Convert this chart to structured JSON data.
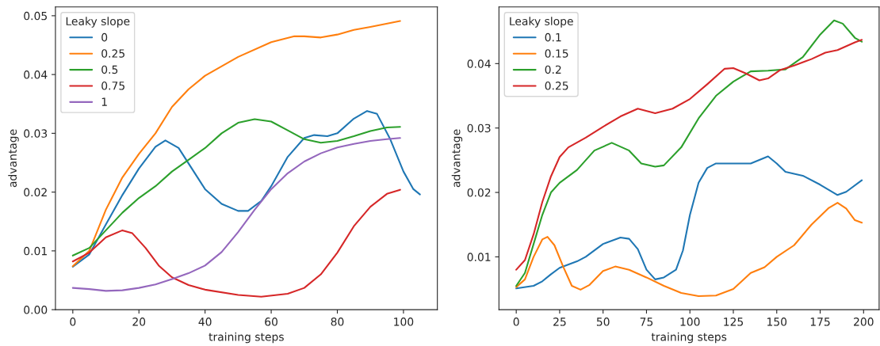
{
  "chart_data": [
    {
      "type": "line",
      "xlabel": "training steps",
      "ylabel": "advantage",
      "legend_title": "Leaky slope",
      "legend": "top left",
      "grid": false,
      "xlim": [
        -5.25,
        110.25
      ],
      "xticks": [
        0,
        20,
        40,
        60,
        80,
        100
      ],
      "ylim": [
        0,
        0.0515
      ],
      "yticks": [
        {
          "value": 0,
          "label": "0.00"
        },
        0.01,
        0.02,
        0.03,
        0.04,
        0.05
      ],
      "series": [
        {
          "name": "0",
          "color": "#1f77b4",
          "x": [
            0,
            5,
            10,
            15,
            20,
            25,
            28,
            32,
            36,
            40,
            45,
            50,
            53,
            57,
            60,
            65,
            70,
            73,
            77,
            80,
            85,
            89,
            92,
            96,
            100,
            103,
            105
          ],
          "values": [
            0.0073,
            0.0094,
            0.0145,
            0.0195,
            0.024,
            0.0277,
            0.0288,
            0.0275,
            0.024,
            0.0205,
            0.018,
            0.0168,
            0.0168,
            0.0185,
            0.021,
            0.026,
            0.0292,
            0.0297,
            0.0295,
            0.03,
            0.0325,
            0.0338,
            0.0333,
            0.029,
            0.0235,
            0.0205,
            0.0196
          ]
        },
        {
          "name": "0.25",
          "color": "#ff7f0e",
          "x": [
            0,
            5,
            10,
            15,
            20,
            25,
            30,
            35,
            40,
            50,
            60,
            67,
            70,
            75,
            80,
            85,
            90,
            99
          ],
          "values": [
            0.0074,
            0.01,
            0.017,
            0.0225,
            0.0265,
            0.03,
            0.0345,
            0.0375,
            0.0398,
            0.043,
            0.0455,
            0.0465,
            0.0465,
            0.0463,
            0.0468,
            0.0476,
            0.0481,
            0.0491
          ]
        },
        {
          "name": "0.5",
          "color": "#2ca02c",
          "x": [
            0,
            5,
            10,
            15,
            20,
            25,
            30,
            35,
            40,
            45,
            50,
            55,
            60,
            65,
            70,
            75,
            80,
            85,
            90,
            95,
            99
          ],
          "values": [
            0.0092,
            0.0105,
            0.0135,
            0.0165,
            0.019,
            0.021,
            0.0235,
            0.0255,
            0.0275,
            0.03,
            0.0318,
            0.0324,
            0.032,
            0.0305,
            0.029,
            0.0284,
            0.0287,
            0.0295,
            0.0304,
            0.031,
            0.0311
          ]
        },
        {
          "name": "0.75",
          "color": "#d62728",
          "x": [
            0,
            5,
            10,
            15,
            18,
            22,
            26,
            30,
            35,
            40,
            50,
            57,
            65,
            70,
            75,
            80,
            85,
            90,
            95,
            99
          ],
          "values": [
            0.0082,
            0.0097,
            0.0123,
            0.0135,
            0.013,
            0.0105,
            0.0075,
            0.0055,
            0.0042,
            0.0034,
            0.0025,
            0.0022,
            0.0027,
            0.0037,
            0.006,
            0.0097,
            0.0142,
            0.0175,
            0.0197,
            0.0204
          ]
        },
        {
          "name": "1",
          "color": "#9467bd",
          "x": [
            0,
            5,
            10,
            15,
            20,
            25,
            30,
            35,
            40,
            45,
            50,
            55,
            60,
            65,
            70,
            75,
            80,
            85,
            90,
            95,
            99
          ],
          "values": [
            0.0037,
            0.0035,
            0.0032,
            0.0033,
            0.0037,
            0.0043,
            0.0052,
            0.0062,
            0.0075,
            0.0098,
            0.0132,
            0.017,
            0.0205,
            0.0232,
            0.0252,
            0.0266,
            0.0276,
            0.0282,
            0.0287,
            0.029,
            0.0292
          ]
        }
      ]
    },
    {
      "type": "line",
      "xlabel": "training steps",
      "ylabel": "advantage",
      "legend_title": "Leaky slope",
      "legend": "top left",
      "grid": false,
      "xlim": [
        -9.95,
        208.95
      ],
      "xticks": [
        0,
        25,
        50,
        75,
        100,
        125,
        150,
        175,
        200
      ],
      "ylim": [
        0.0018,
        0.0488
      ],
      "yticks": [
        0.01,
        0.02,
        0.03,
        0.04
      ],
      "series": [
        {
          "name": "0.1",
          "color": "#1f77b4",
          "x": [
            0,
            10,
            15,
            20,
            25,
            35,
            40,
            50,
            60,
            65,
            70,
            75,
            80,
            85,
            92,
            96,
            100,
            105,
            110,
            115,
            125,
            135,
            145,
            150,
            155,
            165,
            175,
            185,
            190,
            199
          ],
          "values": [
            0.0051,
            0.0055,
            0.0062,
            0.0073,
            0.0083,
            0.0093,
            0.01,
            0.012,
            0.013,
            0.0128,
            0.0112,
            0.008,
            0.0065,
            0.0068,
            0.008,
            0.011,
            0.0165,
            0.0215,
            0.0238,
            0.0245,
            0.0245,
            0.0245,
            0.0256,
            0.0245,
            0.0232,
            0.0226,
            0.0212,
            0.0196,
            0.0201,
            0.0219
          ]
        },
        {
          "name": "0.15",
          "color": "#ff7f0e",
          "x": [
            0,
            5,
            10,
            15,
            18,
            22,
            27,
            32,
            37,
            42,
            50,
            57,
            65,
            75,
            85,
            95,
            105,
            115,
            125,
            135,
            143,
            150,
            160,
            170,
            180,
            185,
            190,
            195,
            199
          ],
          "values": [
            0.0053,
            0.0065,
            0.01,
            0.0127,
            0.0131,
            0.0118,
            0.0085,
            0.0055,
            0.0049,
            0.0056,
            0.0078,
            0.0085,
            0.008,
            0.0068,
            0.0055,
            0.0044,
            0.0039,
            0.004,
            0.005,
            0.0075,
            0.0084,
            0.01,
            0.0118,
            0.015,
            0.0176,
            0.0184,
            0.0175,
            0.0157,
            0.0153
          ]
        },
        {
          "name": "0.2",
          "color": "#2ca02c",
          "x": [
            0,
            5,
            10,
            15,
            20,
            25,
            35,
            45,
            55,
            65,
            72,
            80,
            85,
            95,
            105,
            115,
            125,
            135,
            145,
            155,
            165,
            175,
            183,
            188,
            195,
            199
          ],
          "values": [
            0.0055,
            0.0075,
            0.012,
            0.0165,
            0.02,
            0.0215,
            0.0235,
            0.0265,
            0.0277,
            0.0265,
            0.0245,
            0.024,
            0.0242,
            0.027,
            0.0315,
            0.035,
            0.0372,
            0.0388,
            0.0389,
            0.0391,
            0.041,
            0.0445,
            0.0467,
            0.0462,
            0.044,
            0.0434
          ]
        },
        {
          "name": "0.25",
          "color": "#d62728",
          "x": [
            0,
            5,
            10,
            15,
            20,
            25,
            30,
            40,
            50,
            60,
            70,
            80,
            90,
            100,
            110,
            120,
            125,
            132,
            140,
            145,
            152,
            160,
            170,
            178,
            185,
            195,
            199
          ],
          "values": [
            0.008,
            0.0095,
            0.0135,
            0.0185,
            0.0225,
            0.0255,
            0.027,
            0.0285,
            0.0302,
            0.0318,
            0.033,
            0.0323,
            0.033,
            0.0345,
            0.0368,
            0.0392,
            0.0393,
            0.0385,
            0.0374,
            0.0377,
            0.039,
            0.0397,
            0.0407,
            0.0417,
            0.0421,
            0.0433,
            0.0437
          ]
        }
      ]
    }
  ]
}
